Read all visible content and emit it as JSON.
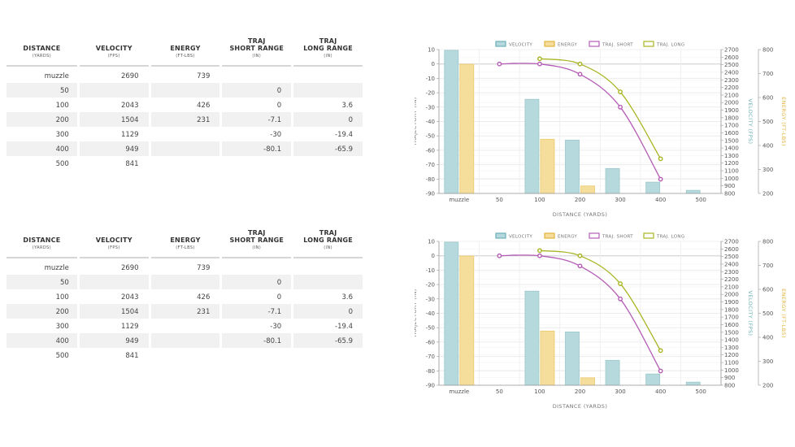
{
  "tables": [
    {
      "headers": [
        {
          "label": "DISTANCE",
          "label2": "",
          "unit": "(YARDS)"
        },
        {
          "label": "VELOCITY",
          "label2": "",
          "unit": "(FPS)"
        },
        {
          "label": "ENERGY",
          "label2": "",
          "unit": "(FT-LBS)"
        },
        {
          "label": "TRAJ",
          "label2": "SHORT RANGE",
          "unit": "(IN)"
        },
        {
          "label": "TRAJ",
          "label2": "LONG RANGE",
          "unit": "(IN)"
        }
      ],
      "rows": [
        [
          "muzzle",
          "2690",
          "739",
          "",
          ""
        ],
        [
          "50",
          "",
          "",
          "0",
          ""
        ],
        [
          "100",
          "2043",
          "426",
          "0",
          "3.6"
        ],
        [
          "200",
          "1504",
          "231",
          "-7.1",
          "0"
        ],
        [
          "300",
          "1129",
          "",
          "-30",
          "-19.4"
        ],
        [
          "400",
          "949",
          "",
          "-80.1",
          "-65.9"
        ],
        [
          "500",
          "841",
          "",
          "",
          ""
        ]
      ]
    },
    {
      "headers": [
        {
          "label": "DISTANCE",
          "label2": "",
          "unit": "(YARDS)"
        },
        {
          "label": "VELOCITY",
          "label2": "",
          "unit": "(FPS)"
        },
        {
          "label": "ENERGY",
          "label2": "",
          "unit": "(FT-LBS)"
        },
        {
          "label": "TRAJ",
          "label2": "SHORT RANGE",
          "unit": "(IN)"
        },
        {
          "label": "TRAJ",
          "label2": "LONG RANGE",
          "unit": "(IN)"
        }
      ],
      "rows": [
        [
          "muzzle",
          "2690",
          "739",
          "",
          ""
        ],
        [
          "50",
          "",
          "",
          "0",
          ""
        ],
        [
          "100",
          "2043",
          "426",
          "0",
          "3.6"
        ],
        [
          "200",
          "1504",
          "231",
          "-7.1",
          "0"
        ],
        [
          "300",
          "1129",
          "",
          "-30",
          "-19.4"
        ],
        [
          "400",
          "949",
          "",
          "-80.1",
          "-65.9"
        ],
        [
          "500",
          "841",
          "",
          "",
          ""
        ]
      ]
    }
  ],
  "chart_data": [
    {
      "type": "bar",
      "categories": [
        "muzzle",
        "50",
        "100",
        "200",
        "300",
        "400",
        "500"
      ],
      "xlabel": "DISTANCE (YARDS)",
      "ylabel": "TRAJECTORY (IN)",
      "y_ticks": [
        "10",
        "0",
        "-10",
        "-20",
        "-30",
        "-40",
        "-50",
        "-60",
        "-70",
        "-80",
        "-90"
      ],
      "ylim": [
        -90,
        10
      ],
      "ylabel2": "VELOCITY (FPS)",
      "y2_ticks": [
        "2700",
        "2600",
        "2500",
        "2400",
        "2300",
        "2200",
        "2100",
        "2000",
        "1900",
        "1800",
        "1700",
        "1600",
        "1500",
        "1400",
        "1300",
        "1200",
        "1100",
        "1000",
        "900",
        "800"
      ],
      "y2lim": [
        800,
        2700
      ],
      "ylabel3": "ENERGY (FT-LBS)",
      "y3_ticks": [
        "800",
        "700",
        "600",
        "500",
        "400",
        "300",
        "200"
      ],
      "y3lim": [
        200,
        800
      ],
      "legend": [
        "VELOCITY",
        "ENERGY",
        "TRAJ. SHORT",
        "TRAJ. LONG"
      ],
      "series": [
        {
          "name": "VELOCITY",
          "axis": "velocity",
          "values": [
            2690,
            null,
            2043,
            1504,
            1129,
            949,
            841
          ]
        },
        {
          "name": "ENERGY",
          "axis": "energy",
          "values": [
            739,
            null,
            426,
            231,
            null,
            null,
            null
          ]
        },
        {
          "name": "TRAJ. SHORT",
          "axis": "trajectory",
          "values": [
            null,
            0,
            0,
            -7.1,
            -30,
            -80.1,
            null
          ]
        },
        {
          "name": "TRAJ. LONG",
          "axis": "trajectory",
          "values": [
            null,
            null,
            3.6,
            0,
            -19.4,
            -65.9,
            null
          ]
        }
      ],
      "colors": {
        "velocity": "#b5d9dc",
        "energy": "#f5dd9b",
        "traj_short": "#b45cb5",
        "traj_long": "#a8b522",
        "velocity_axis": "#6ab0b6",
        "energy_axis": "#e2b43c"
      }
    },
    {
      "type": "bar",
      "categories": [
        "muzzle",
        "50",
        "100",
        "200",
        "300",
        "400",
        "500"
      ],
      "xlabel": "DISTANCE (YARDS)",
      "ylabel": "TRAJECTORY (IN)",
      "y_ticks": [
        "10",
        "0",
        "-10",
        "-20",
        "-30",
        "-40",
        "-50",
        "-60",
        "-70",
        "-80",
        "-90"
      ],
      "ylim": [
        -90,
        10
      ],
      "ylabel2": "VELOCITY (FPS)",
      "y2_ticks": [
        "2700",
        "2600",
        "2500",
        "2400",
        "2300",
        "2200",
        "2100",
        "2000",
        "1900",
        "1800",
        "1700",
        "1600",
        "1500",
        "1400",
        "1300",
        "1200",
        "1100",
        "1000",
        "900",
        "800"
      ],
      "y2lim": [
        800,
        2700
      ],
      "ylabel3": "ENERGY (FT-LBS)",
      "y3_ticks": [
        "800",
        "700",
        "600",
        "500",
        "400",
        "300",
        "200"
      ],
      "y3lim": [
        200,
        800
      ],
      "legend": [
        "VELOCITY",
        "ENERGY",
        "TRAJ. SHORT",
        "TRAJ. LONG"
      ],
      "series": [
        {
          "name": "VELOCITY",
          "axis": "velocity",
          "values": [
            2690,
            null,
            2043,
            1504,
            1129,
            949,
            841
          ]
        },
        {
          "name": "ENERGY",
          "axis": "energy",
          "values": [
            739,
            null,
            426,
            231,
            null,
            null,
            null
          ]
        },
        {
          "name": "TRAJ. SHORT",
          "axis": "trajectory",
          "values": [
            null,
            0,
            0,
            -7.1,
            -30,
            -80.1,
            null
          ]
        },
        {
          "name": "TRAJ. LONG",
          "axis": "trajectory",
          "values": [
            null,
            null,
            3.6,
            0,
            -19.4,
            -65.9,
            null
          ]
        }
      ],
      "colors": {
        "velocity": "#b5d9dc",
        "energy": "#f5dd9b",
        "traj_short": "#b45cb5",
        "traj_long": "#a8b522",
        "velocity_axis": "#6ab0b6",
        "energy_axis": "#e2b43c"
      }
    }
  ]
}
